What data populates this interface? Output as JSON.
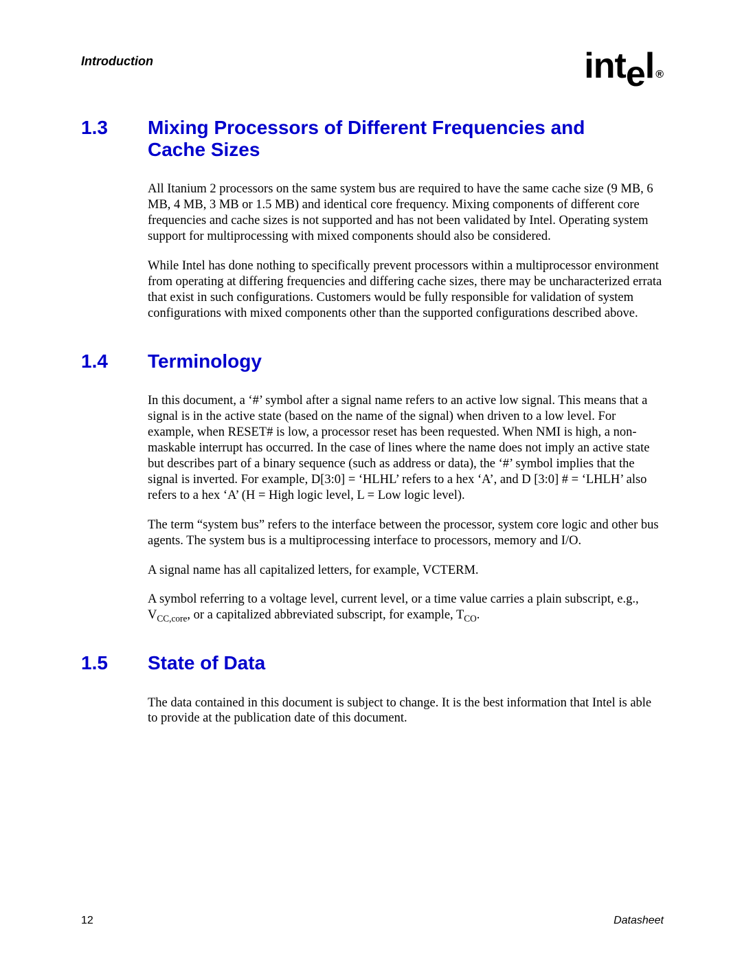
{
  "header": {
    "chapter": "Introduction",
    "logo_int": "int",
    "logo_e": "e",
    "logo_l": "l",
    "logo_reg": "®"
  },
  "colors": {
    "heading": "#0000cc",
    "text": "#000000",
    "background": "#ffffff"
  },
  "typography": {
    "heading_family": "Arial, Helvetica, sans-serif",
    "body_family": "Times New Roman, Times, serif",
    "heading_size_pt": 21,
    "body_size_pt": 14
  },
  "sections": [
    {
      "number": "1.3",
      "title": "Mixing Processors of Different Frequencies and Cache Sizes",
      "paragraphs": [
        "All Itanium 2 processors on the same system bus are required to have the same cache size (9 MB, 6 MB, 4 MB, 3 MB or 1.5 MB) and identical core frequency. Mixing components of different core frequencies and cache sizes is not supported and has not been validated by Intel. Operating system support for multiprocessing with mixed components should also be considered.",
        "While Intel has done nothing to specifically prevent processors within a multiprocessor environment from operating at differing frequencies and differing cache sizes, there may be uncharacterized errata that exist in such configurations. Customers would be fully responsible for validation of system configurations with mixed components other than the supported configurations described above."
      ]
    },
    {
      "number": "1.4",
      "title": "Terminology",
      "paragraphs": [
        "In this document, a ‘#’ symbol after a signal name refers to an active low signal. This means that a signal is in the active state (based on the name of the signal) when driven to a low level. For example, when RESET# is low, a processor reset has been requested. When NMI is high, a non-maskable interrupt has occurred. In the case of lines where the name does not imply an active state but describes part of a binary sequence (such as address or data), the ‘#’ symbol implies that the signal is inverted. For example, D[3:0] = ‘HLHL’ refers to a hex ‘A’, and D [3:0] # = ‘LHLH’ also refers to a hex ‘A’ (H = High logic level, L = Low logic level).",
        "The term “system bus” refers to the interface between the processor, system core logic and other bus agents. The system bus is a multiprocessing interface to processors, memory and I/O.",
        "A signal name has all capitalized letters, for example, VCTERM."
      ],
      "para4_pre": "A symbol referring to a voltage level, current level, or a time value carries a plain subscript, e.g., V",
      "para4_sub1": "CC,core",
      "para4_mid": ", or a capitalized abbreviated subscript, for example, T",
      "para4_sub2": "CO",
      "para4_post": "."
    },
    {
      "number": "1.5",
      "title": "State of Data",
      "paragraphs": [
        "The data contained in this document is subject to change. It is the best information that Intel is able to provide at the publication date of this document."
      ]
    }
  ],
  "footer": {
    "page_number": "12",
    "doc_type": "Datasheet"
  }
}
